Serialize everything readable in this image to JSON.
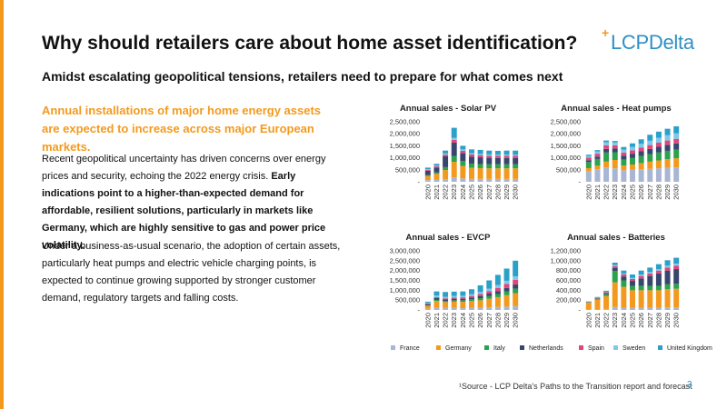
{
  "title": "Why should retailers care about home asset identification?",
  "logo": {
    "plus": "+",
    "text": "LCPDelta"
  },
  "subtitle": "Amidst escalating geopolitical tensions, retailers need to prepare for what comes next",
  "lead": "Annual installations of major home energy assets are expected to increase across major European markets.",
  "para1": {
    "normal": "Recent geopolitical uncertainty has driven concerns over energy prices and security, echoing the 2022 energy crisis. ",
    "bold": "Early indications point to a higher-than-expected demand for affordable, resilient solutions, particularly in markets like Germany, which are highly sensitive to gas and power price volatility."
  },
  "para2": "Under a business-as-usual scenario, the adoption of certain assets, particularly heat pumps and electric vehicle charging points, is expected to continue growing supported by stronger customer demand, regulatory targets and falling costs.",
  "footnote": "¹Source - LCP Delta's Paths to the Transition report and forecast",
  "page_number": "3",
  "colors": {
    "accent": "#f39a1e",
    "brand": "#2f8fc4",
    "France": "#a9b6d3",
    "Germany": "#f39a1e",
    "Italy": "#2ba24c",
    "Netherlands": "#38466e",
    "Spain": "#e0467c",
    "Sweden": "#7ec9ea",
    "United Kingdom": "#2ba0c8"
  },
  "chart_data": [
    {
      "type": "bar",
      "stacked": true,
      "title": "Annual sales - Solar PV",
      "categories": [
        "2020",
        "2021",
        "2022",
        "2023",
        "2024",
        "2025",
        "2026",
        "2027",
        "2028",
        "2029",
        "2030"
      ],
      "ylim": [
        0,
        2500000
      ],
      "yticks": [
        0,
        500000,
        1000000,
        1500000,
        2000000,
        2500000
      ],
      "ytick_labels": [
        "-",
        "500,000",
        "1,000,000",
        "1,500,000",
        "2,000,000",
        "2,500,000"
      ],
      "series": [
        {
          "name": "France",
          "values": [
            70000,
            80000,
            110000,
            180000,
            140000,
            120000,
            120000,
            120000,
            120000,
            120000,
            120000
          ]
        },
        {
          "name": "Germany",
          "values": [
            170000,
            250000,
            380000,
            650000,
            520000,
            460000,
            450000,
            440000,
            440000,
            440000,
            440000
          ]
        },
        {
          "name": "Italy",
          "values": [
            40000,
            60000,
            120000,
            250000,
            200000,
            180000,
            170000,
            170000,
            170000,
            170000,
            170000
          ]
        },
        {
          "name": "Netherlands",
          "values": [
            180000,
            200000,
            450000,
            550000,
            330000,
            290000,
            280000,
            270000,
            260000,
            260000,
            260000
          ]
        },
        {
          "name": "Spain",
          "values": [
            40000,
            50000,
            70000,
            120000,
            100000,
            90000,
            90000,
            90000,
            90000,
            90000,
            90000
          ]
        },
        {
          "name": "Sweden",
          "values": [
            20000,
            30000,
            50000,
            80000,
            60000,
            50000,
            50000,
            50000,
            50000,
            50000,
            50000
          ]
        },
        {
          "name": "United Kingdom",
          "values": [
            70000,
            80000,
            120000,
            420000,
            150000,
            160000,
            170000,
            160000,
            160000,
            170000,
            170000
          ]
        }
      ]
    },
    {
      "type": "bar",
      "stacked": true,
      "title": "Annual sales - Heat pumps",
      "categories": [
        "2020",
        "2021",
        "2022",
        "2023",
        "2024",
        "2025",
        "2026",
        "2027",
        "2028",
        "2029",
        "2030"
      ],
      "ylim": [
        0,
        2500000
      ],
      "yticks": [
        0,
        500000,
        1000000,
        1500000,
        2000000,
        2500000
      ],
      "ytick_labels": [
        "-",
        "500,000",
        "1,000,000",
        "1,500,000",
        "2,000,000",
        "2,500,000"
      ],
      "series": [
        {
          "name": "France",
          "values": [
            450000,
            520000,
            600000,
            560000,
            480000,
            500000,
            520000,
            540000,
            560000,
            580000,
            600000
          ]
        },
        {
          "name": "Germany",
          "values": [
            120000,
            150000,
            240000,
            350000,
            200000,
            220000,
            260000,
            300000,
            330000,
            360000,
            380000
          ]
        },
        {
          "name": "Italy",
          "values": [
            250000,
            280000,
            380000,
            320000,
            250000,
            270000,
            290000,
            310000,
            330000,
            350000,
            360000
          ]
        },
        {
          "name": "Netherlands",
          "values": [
            80000,
            100000,
            150000,
            160000,
            160000,
            180000,
            200000,
            220000,
            240000,
            250000,
            260000
          ]
        },
        {
          "name": "Spain",
          "values": [
            110000,
            120000,
            150000,
            130000,
            130000,
            140000,
            150000,
            160000,
            170000,
            180000,
            190000
          ]
        },
        {
          "name": "Sweden",
          "values": [
            70000,
            90000,
            130000,
            120000,
            120000,
            140000,
            160000,
            180000,
            200000,
            220000,
            230000
          ]
        },
        {
          "name": "United Kingdom",
          "values": [
            50000,
            60000,
            70000,
            60000,
            110000,
            150000,
            190000,
            250000,
            260000,
            270000,
            290000
          ]
        }
      ]
    },
    {
      "type": "bar",
      "stacked": true,
      "title": "Annual sales - EVCP",
      "categories": [
        "2020",
        "2021",
        "2022",
        "2023",
        "2024",
        "2025",
        "2026",
        "2027",
        "2028",
        "2029",
        "2030"
      ],
      "ylim": [
        0,
        3000000
      ],
      "yticks": [
        0,
        500000,
        1000000,
        1500000,
        2000000,
        2500000,
        3000000
      ],
      "ytick_labels": [
        "-",
        "500,000",
        "1,000,000",
        "1,500,000",
        "2,000,000",
        "2,500,000",
        "3,000,000"
      ],
      "series": [
        {
          "name": "France",
          "values": [
            60000,
            100000,
            100000,
            100000,
            90000,
            100000,
            110000,
            130000,
            150000,
            170000,
            190000
          ]
        },
        {
          "name": "Germany",
          "values": [
            150000,
            350000,
            300000,
            320000,
            320000,
            350000,
            380000,
            440000,
            500000,
            580000,
            660000
          ]
        },
        {
          "name": "Italy",
          "values": [
            30000,
            60000,
            60000,
            70000,
            80000,
            90000,
            110000,
            130000,
            160000,
            190000,
            230000
          ]
        },
        {
          "name": "Netherlands",
          "values": [
            60000,
            100000,
            80000,
            80000,
            80000,
            90000,
            110000,
            130000,
            150000,
            180000,
            210000
          ]
        },
        {
          "name": "Spain",
          "values": [
            20000,
            40000,
            50000,
            60000,
            70000,
            80000,
            100000,
            130000,
            160000,
            200000,
            240000
          ]
        },
        {
          "name": "Sweden",
          "values": [
            40000,
            80000,
            80000,
            80000,
            80000,
            90000,
            100000,
            120000,
            140000,
            160000,
            180000
          ]
        },
        {
          "name": "United Kingdom",
          "values": [
            60000,
            210000,
            240000,
            220000,
            220000,
            250000,
            340000,
            420000,
            520000,
            620000,
            790000
          ]
        }
      ]
    },
    {
      "type": "bar",
      "stacked": true,
      "title": "Annual sales - Batteries",
      "categories": [
        "2020",
        "2021",
        "2022",
        "2023",
        "2024",
        "2025",
        "2026",
        "2027",
        "2028",
        "2029",
        "2030"
      ],
      "ylim": [
        0,
        1200000
      ],
      "yticks": [
        0,
        200000,
        400000,
        600000,
        800000,
        1000000,
        1200000
      ],
      "ytick_labels": [
        "-",
        "200,000",
        "400,000",
        "600,000",
        "800,000",
        "1,000,000",
        "1,200,000"
      ],
      "series": [
        {
          "name": "France",
          "values": [
            5000,
            8000,
            20000,
            60000,
            40000,
            40000,
            40000,
            40000,
            40000,
            50000,
            50000
          ]
        },
        {
          "name": "Germany",
          "values": [
            140000,
            200000,
            260000,
            500000,
            430000,
            360000,
            360000,
            360000,
            360000,
            370000,
            380000
          ]
        },
        {
          "name": "Italy",
          "values": [
            10000,
            20000,
            40000,
            230000,
            130000,
            90000,
            90000,
            90000,
            90000,
            100000,
            100000
          ]
        },
        {
          "name": "Netherlands",
          "values": [
            5000,
            10000,
            20000,
            60000,
            80000,
            100000,
            150000,
            200000,
            250000,
            280000,
            300000
          ]
        },
        {
          "name": "Spain",
          "values": [
            5000,
            10000,
            20000,
            40000,
            40000,
            40000,
            50000,
            50000,
            60000,
            60000,
            70000
          ]
        },
        {
          "name": "Sweden",
          "values": [
            5000,
            5000,
            10000,
            20000,
            20000,
            20000,
            30000,
            30000,
            30000,
            40000,
            40000
          ]
        },
        {
          "name": "United Kingdom",
          "values": [
            5000,
            10000,
            20000,
            50000,
            60000,
            70000,
            80000,
            90000,
            100000,
            110000,
            120000
          ]
        }
      ]
    }
  ],
  "legend": [
    "France",
    "Germany",
    "Italy",
    "Netherlands",
    "Spain",
    "Sweden",
    "United Kingdom"
  ]
}
